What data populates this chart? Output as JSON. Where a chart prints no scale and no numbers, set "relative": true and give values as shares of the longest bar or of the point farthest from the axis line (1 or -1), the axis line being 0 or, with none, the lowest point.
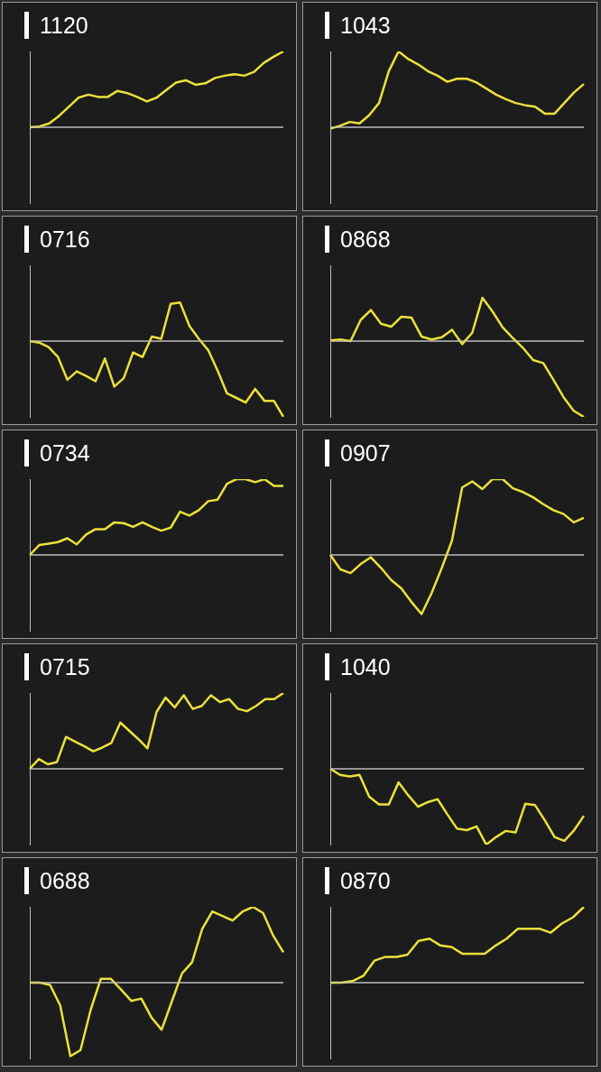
{
  "chart_data": [
    {
      "type": "line",
      "title": "1120",
      "relative": true,
      "marker": "none",
      "color": "#ebe13c",
      "categories": [
        null,
        null,
        null,
        null,
        null,
        null,
        null,
        null,
        null,
        null,
        null,
        null,
        null,
        null,
        null,
        null,
        null,
        null,
        null,
        null,
        null,
        null,
        null,
        null,
        null,
        null,
        null
      ],
      "values": [
        0,
        0.01,
        0.05,
        0.15,
        0.27,
        0.39,
        0.43,
        0.4,
        0.4,
        0.48,
        0.45,
        0.4,
        0.34,
        0.39,
        0.49,
        0.59,
        0.62,
        0.56,
        0.58,
        0.65,
        0.68,
        0.7,
        0.68,
        0.73,
        0.85,
        0.93,
        1
      ]
    },
    {
      "type": "line",
      "title": "1043",
      "relative": true,
      "marker": "none",
      "color": "#ebe13c",
      "categories": [
        null,
        null,
        null,
        null,
        null,
        null,
        null,
        null,
        null,
        null,
        null,
        null,
        null,
        null,
        null,
        null,
        null,
        null,
        null,
        null,
        null,
        null,
        null,
        null,
        null,
        null,
        null
      ],
      "values": [
        -0.02,
        0.02,
        0.07,
        0.05,
        0.16,
        0.32,
        0.74,
        1,
        0.9,
        0.83,
        0.74,
        0.68,
        0.6,
        0.64,
        0.64,
        0.59,
        0.51,
        0.43,
        0.37,
        0.32,
        0.29,
        0.27,
        0.18,
        0.18,
        0.32,
        0.46,
        0.57
      ]
    },
    {
      "type": "line",
      "title": "0716",
      "relative": true,
      "marker": "none",
      "color": "#ebe13c",
      "categories": [
        null,
        null,
        null,
        null,
        null,
        null,
        null,
        null,
        null,
        null,
        null,
        null,
        null,
        null,
        null,
        null,
        null,
        null,
        null,
        null,
        null,
        null,
        null,
        null,
        null,
        null,
        null,
        null
      ],
      "values": [
        0,
        -0.02,
        -0.08,
        -0.21,
        -0.51,
        -0.4,
        -0.46,
        -0.53,
        -0.23,
        -0.6,
        -0.49,
        -0.15,
        -0.21,
        0.06,
        0.03,
        0.49,
        0.51,
        0.2,
        0.03,
        -0.12,
        -0.39,
        -0.69,
        -0.75,
        -0.81,
        -0.63,
        -0.79,
        -0.79,
        -1
      ]
    },
    {
      "type": "line",
      "title": "0868",
      "relative": true,
      "marker": "none",
      "color": "#ebe13c",
      "categories": [
        null,
        null,
        null,
        null,
        null,
        null,
        null,
        null,
        null,
        null,
        null,
        null,
        null,
        null,
        null,
        null,
        null,
        null,
        null,
        null,
        null,
        null,
        null,
        null,
        null,
        null
      ],
      "values": [
        0.01,
        0.02,
        0,
        0.28,
        0.41,
        0.23,
        0.19,
        0.32,
        0.31,
        0.06,
        0.02,
        0.05,
        0.15,
        -0.04,
        0.11,
        0.57,
        0.39,
        0.18,
        0.04,
        -0.09,
        -0.25,
        -0.29,
        -0.51,
        -0.74,
        -0.92,
        -1
      ]
    },
    {
      "type": "line",
      "title": "0734",
      "relative": true,
      "marker": "none",
      "color": "#ebe13c",
      "categories": [
        null,
        null,
        null,
        null,
        null,
        null,
        null,
        null,
        null,
        null,
        null,
        null,
        null,
        null,
        null,
        null,
        null,
        null,
        null,
        null,
        null,
        null,
        null,
        null,
        null,
        null,
        null,
        null
      ],
      "values": [
        0,
        0.13,
        0.15,
        0.17,
        0.22,
        0.14,
        0.27,
        0.34,
        0.34,
        0.43,
        0.42,
        0.37,
        0.43,
        0.37,
        0.32,
        0.36,
        0.57,
        0.52,
        0.59,
        0.71,
        0.73,
        0.94,
        1,
        1,
        0.96,
        1,
        0.91,
        0.91
      ]
    },
    {
      "type": "line",
      "title": "0907",
      "relative": true,
      "marker": "none",
      "color": "#ebe13c",
      "categories": [
        null,
        null,
        null,
        null,
        null,
        null,
        null,
        null,
        null,
        null,
        null,
        null,
        null,
        null,
        null,
        null,
        null,
        null,
        null,
        null,
        null,
        null,
        null,
        null,
        null,
        null
      ],
      "values": [
        0,
        -0.19,
        -0.24,
        -0.12,
        -0.03,
        -0.17,
        -0.33,
        -0.44,
        -0.62,
        -0.78,
        -0.5,
        -0.17,
        0.19,
        0.89,
        0.97,
        0.87,
        1,
        1,
        0.88,
        0.83,
        0.76,
        0.67,
        0.59,
        0.54,
        0.43,
        0.49
      ]
    },
    {
      "type": "line",
      "title": "0715",
      "relative": true,
      "marker": "none",
      "color": "#ebe13c",
      "categories": [
        null,
        null,
        null,
        null,
        null,
        null,
        null,
        null,
        null,
        null,
        null,
        null,
        null,
        null,
        null,
        null,
        null,
        null,
        null,
        null,
        null,
        null,
        null,
        null,
        null,
        null,
        null,
        null,
        null
      ],
      "values": [
        0,
        0.13,
        0.06,
        0.09,
        0.42,
        0.36,
        0.3,
        0.23,
        0.28,
        0.34,
        0.61,
        0.5,
        0.39,
        0.27,
        0.75,
        0.94,
        0.81,
        0.97,
        0.79,
        0.83,
        0.97,
        0.88,
        0.92,
        0.79,
        0.76,
        0.83,
        0.92,
        0.92,
        1
      ]
    },
    {
      "type": "line",
      "title": "1040",
      "relative": true,
      "marker": "none",
      "color": "#ebe13c",
      "categories": [
        null,
        null,
        null,
        null,
        null,
        null,
        null,
        null,
        null,
        null,
        null,
        null,
        null,
        null,
        null,
        null,
        null,
        null,
        null,
        null,
        null,
        null,
        null,
        null,
        null,
        null,
        null
      ],
      "values": [
        0,
        -0.08,
        -0.1,
        -0.08,
        -0.37,
        -0.47,
        -0.47,
        -0.18,
        -0.35,
        -0.5,
        -0.44,
        -0.4,
        -0.6,
        -0.79,
        -0.81,
        -0.76,
        -1,
        -0.9,
        -0.82,
        -0.84,
        -0.46,
        -0.48,
        -0.68,
        -0.9,
        -0.95,
        -0.81,
        -0.62
      ]
    },
    {
      "type": "line",
      "title": "0688",
      "relative": true,
      "marker": "none",
      "color": "#ebe13c",
      "categories": [
        null,
        null,
        null,
        null,
        null,
        null,
        null,
        null,
        null,
        null,
        null,
        null,
        null,
        null,
        null,
        null,
        null,
        null,
        null,
        null,
        null,
        null,
        null,
        null,
        null,
        null
      ],
      "values": [
        0,
        0,
        -0.03,
        -0.3,
        -0.97,
        -0.89,
        -0.36,
        0.05,
        0.05,
        -0.09,
        -0.24,
        -0.21,
        -0.46,
        -0.62,
        -0.25,
        0.12,
        0.27,
        0.71,
        0.94,
        0.88,
        0.82,
        0.94,
        1,
        0.92,
        0.62,
        0.4
      ]
    },
    {
      "type": "line",
      "title": "0870",
      "relative": true,
      "marker": "none",
      "color": "#ebe13c",
      "categories": [
        null,
        null,
        null,
        null,
        null,
        null,
        null,
        null,
        null,
        null,
        null,
        null,
        null,
        null,
        null,
        null,
        null,
        null,
        null,
        null,
        null,
        null,
        null,
        null
      ],
      "values": [
        0,
        0,
        0.02,
        0.09,
        0.29,
        0.34,
        0.34,
        0.37,
        0.55,
        0.58,
        0.49,
        0.47,
        0.38,
        0.38,
        0.38,
        0.49,
        0.58,
        0.71,
        0.71,
        0.71,
        0.66,
        0.78,
        0.86,
        1
      ]
    }
  ]
}
